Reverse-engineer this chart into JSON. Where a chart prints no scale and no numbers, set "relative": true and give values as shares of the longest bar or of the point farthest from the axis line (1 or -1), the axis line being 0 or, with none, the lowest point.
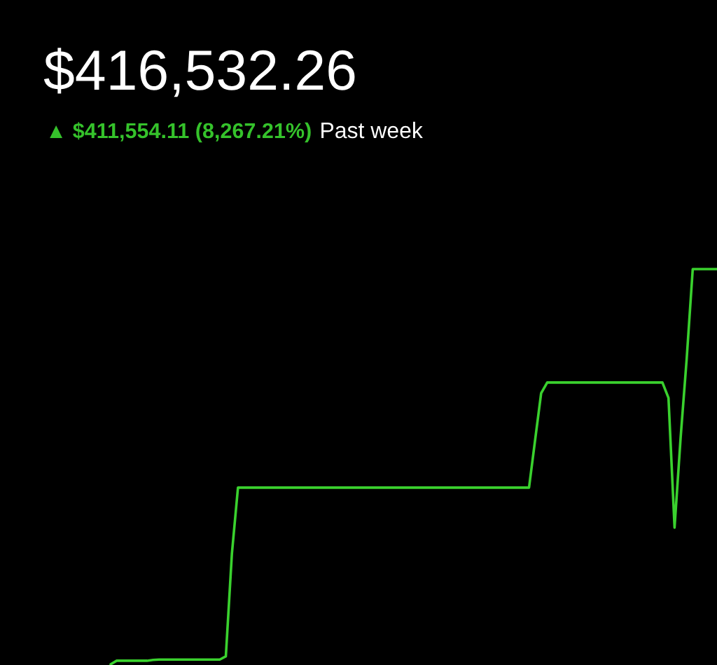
{
  "chart_data": {
    "type": "line",
    "title": "$416,532.26",
    "subtitle": "▲ $411,554.11 (8,267.21%)",
    "annotations": [
      "Past week"
    ],
    "relative": true,
    "line_style": "solid",
    "categories": [
      null,
      null,
      null,
      null,
      null,
      null,
      null,
      null,
      null,
      null,
      null,
      null,
      null,
      null,
      null,
      null,
      null,
      null,
      null,
      null,
      null,
      null,
      null,
      null,
      null,
      null,
      null,
      null,
      null,
      null,
      null,
      null,
      null,
      null,
      null,
      null,
      null,
      null,
      null,
      null,
      null,
      null,
      null,
      null,
      null,
      null,
      null,
      null,
      null,
      null,
      null,
      null,
      null,
      null,
      null,
      null,
      null,
      null,
      null,
      null,
      null,
      null,
      null,
      null,
      null,
      null,
      null,
      null,
      null,
      null,
      null,
      null,
      null,
      null,
      null,
      null,
      null,
      null,
      null,
      null,
      null,
      null,
      null,
      null,
      null,
      null,
      null,
      null,
      null,
      null,
      null,
      null,
      null,
      null,
      null,
      null,
      null,
      null,
      null,
      null,
      null
    ],
    "series": [
      {
        "color": "#3ad12e",
        "values": [
          0,
          0.009,
          0.009,
          0.009,
          0.009,
          0.009,
          0.009,
          0.011,
          0.012,
          0.012,
          0.012,
          0.012,
          0.012,
          0.012,
          0.012,
          0.012,
          0.012,
          0.012,
          0.012,
          0.02,
          0.28,
          0.447,
          0.447,
          0.447,
          0.447,
          0.447,
          0.447,
          0.447,
          0.447,
          0.447,
          0.447,
          0.447,
          0.447,
          0.447,
          0.447,
          0.447,
          0.447,
          0.447,
          0.447,
          0.447,
          0.447,
          0.447,
          0.447,
          0.447,
          0.447,
          0.447,
          0.447,
          0.447,
          0.447,
          0.447,
          0.447,
          0.447,
          0.447,
          0.447,
          0.447,
          0.447,
          0.447,
          0.447,
          0.447,
          0.447,
          0.447,
          0.447,
          0.447,
          0.447,
          0.447,
          0.447,
          0.447,
          0.447,
          0.447,
          0.447,
          0.567,
          0.686,
          0.713,
          0.713,
          0.713,
          0.713,
          0.713,
          0.713,
          0.713,
          0.713,
          0.713,
          0.713,
          0.713,
          0.713,
          0.713,
          0.713,
          0.713,
          0.713,
          0.713,
          0.713,
          0.713,
          0.713,
          0.674,
          0.346,
          0.573,
          0.773,
          1,
          1,
          1,
          1,
          1
        ]
      }
    ]
  }
}
